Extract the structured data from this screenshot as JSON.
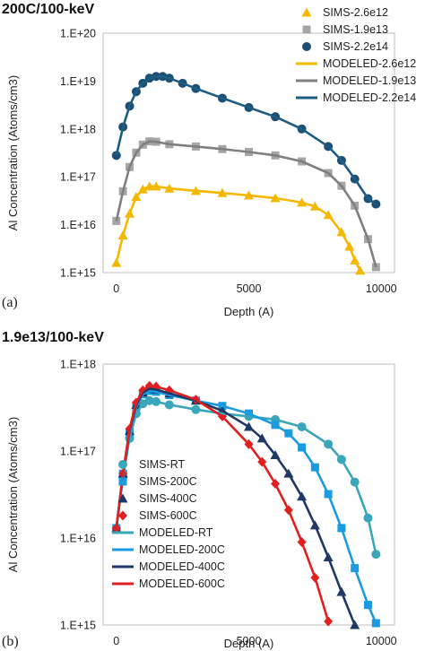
{
  "chart_data": [
    {
      "type": "scatter",
      "title": "200C/100-keV",
      "panel_label": "(a)",
      "xlabel": "Depth (A)",
      "ylabel": "Al Concentration (Atoms/cm3)",
      "xlim": [
        -500,
        10500
      ],
      "xticks": [
        0,
        5000,
        10000
      ],
      "ylim": [
        1000000000000000.0,
        1e+20
      ],
      "yscale": "log",
      "yticks": [
        "1.E+15",
        "1.E+16",
        "1.E+17",
        "1.E+18",
        "1.E+19",
        "1.E+20"
      ],
      "grid": false,
      "legend_position": "right",
      "series": [
        {
          "name": "SIMS-2.6e12",
          "kind": "markers",
          "marker": "triangle",
          "color": "#f5b800",
          "x": [
            0,
            250,
            500,
            750,
            1000,
            1250,
            1500,
            2000,
            3000,
            4000,
            5000,
            6000,
            7000,
            7500,
            8000,
            8500,
            8800,
            9000,
            9200
          ],
          "y": [
            1600000000000000.0,
            6000000000000000.0,
            1.7e+16,
            3.8e+16,
            5.5e+16,
            6.3e+16,
            6.3e+16,
            5.7e+16,
            5.1e+16,
            4.6e+16,
            4.1e+16,
            3.6e+16,
            2.9e+16,
            2.4e+16,
            1.6e+16,
            7000000000000000.0,
            3500000000000000.0,
            1800000000000000.0,
            1100000000000000.0
          ]
        },
        {
          "name": "SIMS-1.9e13",
          "kind": "markers",
          "marker": "square",
          "color": "#a6a6a6",
          "x": [
            0,
            250,
            500,
            750,
            1000,
            1250,
            1500,
            2000,
            3000,
            4000,
            5000,
            6000,
            7000,
            8000,
            8500,
            9000,
            9500,
            9800
          ],
          "y": [
            1.2e+16,
            5e+16,
            1.6e+17,
            3.2e+17,
            4.7e+17,
            5.5e+17,
            5.4e+17,
            4.8e+17,
            4.3e+17,
            3.8e+17,
            3.3e+17,
            2.8e+17,
            2.1e+17,
            1.2e+17,
            6.5e+16,
            2.5e+16,
            5000000000000000.0,
            1300000000000000.0
          ]
        },
        {
          "name": "SIMS-2.2e14",
          "kind": "markers",
          "marker": "circle",
          "color": "#1c4f73",
          "x": [
            0,
            250,
            500,
            750,
            1000,
            1250,
            1500,
            1750,
            2000,
            2500,
            3000,
            4000,
            5000,
            6000,
            7000,
            8000,
            8500,
            9000,
            9500,
            9800
          ],
          "y": [
            2.8e+17,
            1.1e+18,
            3e+18,
            6e+18,
            9e+18,
            1.15e+19,
            1.25e+19,
            1.25e+19,
            1.15e+19,
            9e+18,
            7e+18,
            4.4e+18,
            2.8e+18,
            1.8e+18,
            1e+18,
            4.3e+17,
            2.2e+17,
            9e+16,
            3.5e+16,
            2.7e+16
          ]
        },
        {
          "name": "MODELED-2.6e12",
          "kind": "line",
          "color": "#f5b800",
          "x": [
            0,
            250,
            500,
            750,
            1000,
            1250,
            1500,
            2000,
            3000,
            4000,
            5000,
            6000,
            7000,
            7500,
            8000,
            8500,
            8800,
            9000,
            9200
          ],
          "y": [
            1600000000000000.0,
            6000000000000000.0,
            1.7e+16,
            3.8e+16,
            5.5e+16,
            6.3e+16,
            6.3e+16,
            5.7e+16,
            5.1e+16,
            4.6e+16,
            4.1e+16,
            3.6e+16,
            2.9e+16,
            2.4e+16,
            1.6e+16,
            7000000000000000.0,
            3500000000000000.0,
            1800000000000000.0,
            1100000000000000.0
          ]
        },
        {
          "name": "MODELED-1.9e13",
          "kind": "line",
          "color": "#7f7f7f",
          "x": [
            0,
            250,
            500,
            750,
            1000,
            1250,
            1500,
            2000,
            3000,
            4000,
            5000,
            6000,
            7000,
            8000,
            8500,
            9000,
            9500,
            9800
          ],
          "y": [
            1.2e+16,
            5e+16,
            1.6e+17,
            3.2e+17,
            4.7e+17,
            5.5e+17,
            5.4e+17,
            4.8e+17,
            4.3e+17,
            3.8e+17,
            3.3e+17,
            2.8e+17,
            2.1e+17,
            1.2e+17,
            6.5e+16,
            2.5e+16,
            5000000000000000.0,
            1300000000000000.0
          ]
        },
        {
          "name": "MODELED-2.2e14",
          "kind": "line",
          "color": "#1f5c82",
          "x": [
            0,
            250,
            500,
            750,
            1000,
            1250,
            1500,
            1750,
            2000,
            2500,
            3000,
            4000,
            5000,
            6000,
            7000,
            8000,
            8500,
            9000,
            9500,
            9800
          ],
          "y": [
            2.8e+17,
            1.1e+18,
            3e+18,
            6e+18,
            9e+18,
            1.15e+19,
            1.25e+19,
            1.25e+19,
            1.15e+19,
            9e+18,
            7e+18,
            4.4e+18,
            2.8e+18,
            1.8e+18,
            1e+18,
            4.3e+17,
            2.2e+17,
            9e+16,
            3.5e+16,
            2.7e+16
          ]
        }
      ]
    },
    {
      "type": "scatter",
      "title": "1.9e13/100-keV",
      "panel_label": "(b)",
      "xlabel": "Depth (A)",
      "ylabel": "Al Concentration (Atoms/cm3)",
      "xlim": [
        -500,
        10500
      ],
      "xticks": [
        0,
        5000,
        10000
      ],
      "ylim": [
        1000000000000000.0,
        1e+18
      ],
      "yscale": "log",
      "yticks": [
        "1.E+15",
        "1.E+16",
        "1.E+17",
        "1.E+18"
      ],
      "grid": false,
      "legend_position": "bottom-left",
      "series": [
        {
          "name": "SIMS-RT",
          "kind": "markers",
          "marker": "circle",
          "color": "#3aa6b9",
          "x": [
            0,
            250,
            500,
            750,
            1000,
            1250,
            1500,
            2000,
            3000,
            4000,
            5000,
            6000,
            7000,
            8000,
            8500,
            9000,
            9500,
            9800
          ],
          "y": [
            1.3e+16,
            5e+16,
            1.4e+17,
            2.7e+17,
            3.5e+17,
            3.8e+17,
            3.7e+17,
            3.4e+17,
            3e+17,
            2.7e+17,
            2.5e+17,
            2.3e+17,
            1.9e+17,
            1.2e+17,
            8e+16,
            4.4e+16,
            1.7e+16,
            6500000000000000.0
          ]
        },
        {
          "name": "SIMS-200C",
          "kind": "markers",
          "marker": "square",
          "color": "#1a9be0",
          "x": [
            0,
            250,
            500,
            750,
            1000,
            1250,
            1500,
            2000,
            3000,
            4000,
            5000,
            6000,
            6500,
            7000,
            7500,
            8000,
            8500,
            9000,
            9500,
            9800
          ],
          "y": [
            1.3e+16,
            5.5e+16,
            1.6e+17,
            3.2e+17,
            4.5e+17,
            4.9e+17,
            4.8e+17,
            4.4e+17,
            3.8e+17,
            3.3e+17,
            2.7e+17,
            2e+17,
            1.6e+17,
            1.1e+17,
            6.5e+16,
            3.2e+16,
            1.3e+16,
            4500000000000000.0,
            1700000000000000.0,
            1050000000000000.0
          ]
        },
        {
          "name": "SIMS-400C",
          "kind": "markers",
          "marker": "triangle",
          "color": "#1f3864",
          "x": [
            0,
            250,
            500,
            750,
            1000,
            1250,
            1500,
            2000,
            3000,
            4000,
            5000,
            5500,
            6000,
            6500,
            7000,
            7500,
            8000,
            8500,
            9000
          ],
          "y": [
            1.3e+16,
            5.5e+16,
            1.7e+17,
            3.4e+17,
            4.7e+17,
            5.2e+17,
            5.1e+17,
            4.6e+17,
            3.8e+17,
            2.9e+17,
            1.9e+17,
            1.4e+17,
            9e+16,
            5.5e+16,
            3e+16,
            1.4e+16,
            6000000000000000.0,
            2400000000000000.0,
            1000000000000000.0
          ]
        },
        {
          "name": "SIMS-600C",
          "kind": "markers",
          "marker": "diamond",
          "color": "#e02020",
          "x": [
            0,
            250,
            500,
            750,
            1000,
            1250,
            1500,
            2000,
            3000,
            4000,
            5000,
            5500,
            6000,
            6500,
            7000,
            7500,
            8000
          ],
          "y": [
            1.3e+16,
            5.5e+16,
            1.8e+17,
            3.6e+17,
            5e+17,
            5.6e+17,
            5.5e+17,
            5e+17,
            3.9e+17,
            2.5e+17,
            1.2e+17,
            7.5e+16,
            4.2e+16,
            2.1e+16,
            9000000000000000.0,
            3500000000000000.0,
            1100000000000000.0
          ]
        },
        {
          "name": "MODELED-RT",
          "kind": "line",
          "color": "#3aa6b9",
          "x": [
            0,
            250,
            500,
            750,
            1000,
            1250,
            1500,
            2000,
            3000,
            4000,
            5000,
            6000,
            7000,
            8000,
            8500,
            9000,
            9500,
            9800
          ],
          "y": [
            1.3e+16,
            5e+16,
            1.4e+17,
            2.7e+17,
            3.5e+17,
            3.8e+17,
            3.7e+17,
            3.4e+17,
            3e+17,
            2.7e+17,
            2.5e+17,
            2.3e+17,
            1.9e+17,
            1.2e+17,
            8e+16,
            4.4e+16,
            1.7e+16,
            6500000000000000.0
          ]
        },
        {
          "name": "MODELED-200C",
          "kind": "line",
          "color": "#1a9be0",
          "x": [
            0,
            250,
            500,
            750,
            1000,
            1250,
            1500,
            2000,
            3000,
            4000,
            5000,
            6000,
            6500,
            7000,
            7500,
            8000,
            8500,
            9000,
            9500,
            9800
          ],
          "y": [
            1.3e+16,
            5.5e+16,
            1.6e+17,
            3.2e+17,
            4.5e+17,
            4.9e+17,
            4.8e+17,
            4.4e+17,
            3.8e+17,
            3.3e+17,
            2.7e+17,
            2e+17,
            1.6e+17,
            1.1e+17,
            6.5e+16,
            3.2e+16,
            1.3e+16,
            4500000000000000.0,
            1700000000000000.0,
            1050000000000000.0
          ]
        },
        {
          "name": "MODELED-400C",
          "kind": "line",
          "color": "#1f3864",
          "x": [
            0,
            250,
            500,
            750,
            1000,
            1250,
            1500,
            2000,
            3000,
            4000,
            5000,
            5500,
            6000,
            6500,
            7000,
            7500,
            8000,
            8500,
            9000
          ],
          "y": [
            1.3e+16,
            5.5e+16,
            1.7e+17,
            3.4e+17,
            4.7e+17,
            5.2e+17,
            5.1e+17,
            4.6e+17,
            3.8e+17,
            2.9e+17,
            1.9e+17,
            1.4e+17,
            9e+16,
            5.5e+16,
            3e+16,
            1.4e+16,
            6000000000000000.0,
            2400000000000000.0,
            1000000000000000.0
          ]
        },
        {
          "name": "MODELED-600C",
          "kind": "line",
          "color": "#e02020",
          "x": [
            0,
            250,
            500,
            750,
            1000,
            1250,
            1500,
            2000,
            3000,
            4000,
            5000,
            5500,
            6000,
            6500,
            7000,
            7500,
            8000
          ],
          "y": [
            1.3e+16,
            5.5e+16,
            1.8e+17,
            3.6e+17,
            5e+17,
            5.6e+17,
            5.5e+17,
            5e+17,
            3.9e+17,
            2.5e+17,
            1.2e+17,
            7.5e+16,
            4.2e+16,
            2.1e+16,
            9000000000000000.0,
            3500000000000000.0,
            1100000000000000.0
          ]
        }
      ]
    }
  ]
}
